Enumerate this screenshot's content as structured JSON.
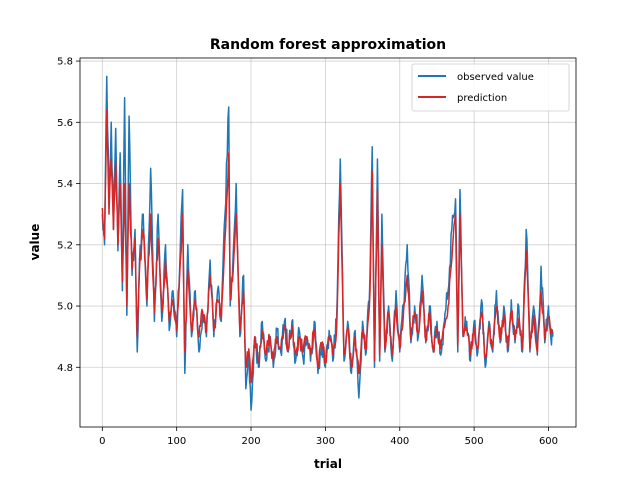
{
  "chart_data": {
    "type": "line",
    "title": "Random forest approximation",
    "xlabel": "trial",
    "ylabel": "value",
    "xlim": [
      -30,
      637
    ],
    "ylim": [
      4.605,
      5.81
    ],
    "xticks": [
      0,
      100,
      200,
      300,
      400,
      500,
      600
    ],
    "yticks": [
      4.8,
      5.0,
      5.2,
      5.4,
      5.6,
      5.8
    ],
    "xtick_labels": [
      "0",
      "100",
      "200",
      "300",
      "400",
      "500",
      "600"
    ],
    "ytick_labels": [
      "4.8",
      "5.0",
      "5.2",
      "5.4",
      "5.6",
      "5.8"
    ],
    "grid": true,
    "legend": "top-right",
    "series": [
      {
        "name": "observed value",
        "color": "#1f77b4",
        "anchors": [
          [
            0,
            5.3
          ],
          [
            3,
            5.2
          ],
          [
            6,
            5.75
          ],
          [
            9,
            5.35
          ],
          [
            12,
            5.6
          ],
          [
            15,
            5.25
          ],
          [
            18,
            5.58
          ],
          [
            21,
            5.18
          ],
          [
            24,
            5.5
          ],
          [
            27,
            5.05
          ],
          [
            30,
            5.68
          ],
          [
            33,
            4.97
          ],
          [
            36,
            5.62
          ],
          [
            40,
            5.1
          ],
          [
            44,
            5.25
          ],
          [
            47,
            4.85
          ],
          [
            50,
            5.15
          ],
          [
            55,
            5.3
          ],
          [
            60,
            5.0
          ],
          [
            65,
            5.45
          ],
          [
            70,
            4.95
          ],
          [
            75,
            5.3
          ],
          [
            80,
            4.95
          ],
          [
            85,
            5.2
          ],
          [
            90,
            4.92
          ],
          [
            95,
            5.05
          ],
          [
            100,
            4.9
          ],
          [
            105,
            5.2
          ],
          [
            108,
            5.38
          ],
          [
            111,
            4.78
          ],
          [
            115,
            5.2
          ],
          [
            120,
            4.9
          ],
          [
            125,
            5.05
          ],
          [
            130,
            4.85
          ],
          [
            135,
            4.98
          ],
          [
            140,
            4.9
          ],
          [
            145,
            5.15
          ],
          [
            150,
            4.9
          ],
          [
            155,
            5.05
          ],
          [
            160,
            4.95
          ],
          [
            165,
            5.3
          ],
          [
            170,
            5.65
          ],
          [
            172,
            5.0
          ],
          [
            175,
            5.1
          ],
          [
            180,
            5.4
          ],
          [
            185,
            4.9
          ],
          [
            190,
            5.1
          ],
          [
            193,
            4.73
          ],
          [
            197,
            4.85
          ],
          [
            200,
            4.66
          ],
          [
            205,
            4.9
          ],
          [
            210,
            4.8
          ],
          [
            215,
            4.95
          ],
          [
            220,
            4.82
          ],
          [
            225,
            4.9
          ],
          [
            230,
            4.8
          ],
          [
            235,
            4.92
          ],
          [
            240,
            4.85
          ],
          [
            245,
            4.95
          ],
          [
            250,
            4.85
          ],
          [
            255,
            4.95
          ],
          [
            260,
            4.82
          ],
          [
            265,
            4.92
          ],
          [
            270,
            4.83
          ],
          [
            275,
            4.9
          ],
          [
            280,
            4.82
          ],
          [
            285,
            4.95
          ],
          [
            290,
            4.78
          ],
          [
            295,
            4.88
          ],
          [
            300,
            4.8
          ],
          [
            305,
            4.92
          ],
          [
            310,
            4.82
          ],
          [
            315,
            4.95
          ],
          [
            320,
            5.48
          ],
          [
            325,
            4.82
          ],
          [
            330,
            4.95
          ],
          [
            335,
            4.78
          ],
          [
            340,
            4.92
          ],
          [
            345,
            4.7
          ],
          [
            350,
            4.95
          ],
          [
            355,
            4.85
          ],
          [
            360,
            5.1
          ],
          [
            363,
            5.52
          ],
          [
            366,
            4.8
          ],
          [
            370,
            5.48
          ],
          [
            373,
            4.82
          ],
          [
            376,
            5.3
          ],
          [
            380,
            4.85
          ],
          [
            385,
            5.0
          ],
          [
            390,
            4.82
          ],
          [
            395,
            5.05
          ],
          [
            400,
            4.85
          ],
          [
            405,
            5.0
          ],
          [
            410,
            5.2
          ],
          [
            415,
            4.88
          ],
          [
            420,
            5.0
          ],
          [
            425,
            4.9
          ],
          [
            430,
            5.1
          ],
          [
            435,
            4.88
          ],
          [
            440,
            5.0
          ],
          [
            445,
            4.85
          ],
          [
            450,
            4.95
          ],
          [
            455,
            4.84
          ],
          [
            460,
            4.95
          ],
          [
            465,
            5.05
          ],
          [
            470,
            5.25
          ],
          [
            475,
            5.35
          ],
          [
            478,
            4.85
          ],
          [
            481,
            5.38
          ],
          [
            485,
            4.9
          ],
          [
            490,
            4.95
          ],
          [
            495,
            4.82
          ],
          [
            500,
            4.95
          ],
          [
            505,
            4.85
          ],
          [
            510,
            5.02
          ],
          [
            515,
            4.8
          ],
          [
            520,
            4.95
          ],
          [
            525,
            4.85
          ],
          [
            530,
            5.05
          ],
          [
            535,
            4.88
          ],
          [
            540,
            5.0
          ],
          [
            545,
            4.85
          ],
          [
            550,
            5.02
          ],
          [
            555,
            4.88
          ],
          [
            560,
            5.0
          ],
          [
            565,
            4.85
          ],
          [
            570,
            5.25
          ],
          [
            572,
            5.12
          ],
          [
            575,
            4.85
          ],
          [
            580,
            5.0
          ],
          [
            585,
            4.84
          ],
          [
            590,
            5.13
          ],
          [
            595,
            4.88
          ],
          [
            600,
            5.0
          ],
          [
            603,
            4.9
          ],
          [
            606,
            4.9
          ]
        ]
      },
      {
        "name": "prediction",
        "color": "#d62728",
        "anchors": [
          [
            0,
            5.32
          ],
          [
            3,
            5.22
          ],
          [
            6,
            5.64
          ],
          [
            9,
            5.3
          ],
          [
            12,
            5.48
          ],
          [
            15,
            5.25
          ],
          [
            18,
            5.47
          ],
          [
            21,
            5.2
          ],
          [
            24,
            5.4
          ],
          [
            27,
            5.08
          ],
          [
            30,
            5.4
          ],
          [
            33,
            5.0
          ],
          [
            36,
            5.4
          ],
          [
            40,
            5.12
          ],
          [
            44,
            5.22
          ],
          [
            47,
            4.9
          ],
          [
            50,
            5.12
          ],
          [
            55,
            5.25
          ],
          [
            60,
            5.02
          ],
          [
            65,
            5.3
          ],
          [
            70,
            4.98
          ],
          [
            75,
            5.22
          ],
          [
            80,
            4.98
          ],
          [
            85,
            5.15
          ],
          [
            90,
            4.95
          ],
          [
            95,
            5.02
          ],
          [
            100,
            4.92
          ],
          [
            105,
            5.15
          ],
          [
            108,
            5.3
          ],
          [
            111,
            4.85
          ],
          [
            115,
            5.12
          ],
          [
            120,
            4.92
          ],
          [
            125,
            5.02
          ],
          [
            130,
            4.9
          ],
          [
            135,
            4.98
          ],
          [
            140,
            4.92
          ],
          [
            145,
            5.1
          ],
          [
            150,
            4.92
          ],
          [
            155,
            5.02
          ],
          [
            160,
            4.96
          ],
          [
            165,
            5.22
          ],
          [
            170,
            5.5
          ],
          [
            172,
            5.02
          ],
          [
            175,
            5.08
          ],
          [
            180,
            5.3
          ],
          [
            185,
            4.92
          ],
          [
            190,
            5.05
          ],
          [
            193,
            4.8
          ],
          [
            197,
            4.86
          ],
          [
            200,
            4.75
          ],
          [
            205,
            4.9
          ],
          [
            210,
            4.82
          ],
          [
            215,
            4.92
          ],
          [
            220,
            4.84
          ],
          [
            225,
            4.9
          ],
          [
            230,
            4.82
          ],
          [
            235,
            4.9
          ],
          [
            240,
            4.86
          ],
          [
            245,
            4.93
          ],
          [
            250,
            4.86
          ],
          [
            255,
            4.93
          ],
          [
            260,
            4.84
          ],
          [
            265,
            4.9
          ],
          [
            270,
            4.85
          ],
          [
            275,
            4.9
          ],
          [
            280,
            4.84
          ],
          [
            285,
            4.92
          ],
          [
            290,
            4.8
          ],
          [
            295,
            4.88
          ],
          [
            300,
            4.82
          ],
          [
            305,
            4.9
          ],
          [
            310,
            4.84
          ],
          [
            315,
            4.92
          ],
          [
            320,
            5.4
          ],
          [
            325,
            4.84
          ],
          [
            330,
            4.93
          ],
          [
            335,
            4.8
          ],
          [
            340,
            4.9
          ],
          [
            345,
            4.78
          ],
          [
            350,
            4.92
          ],
          [
            355,
            4.86
          ],
          [
            360,
            5.05
          ],
          [
            363,
            5.44
          ],
          [
            366,
            4.82
          ],
          [
            370,
            5.38
          ],
          [
            373,
            4.84
          ],
          [
            376,
            5.2
          ],
          [
            380,
            4.86
          ],
          [
            385,
            4.98
          ],
          [
            390,
            4.84
          ],
          [
            395,
            5.0
          ],
          [
            400,
            4.86
          ],
          [
            405,
            4.98
          ],
          [
            410,
            5.1
          ],
          [
            415,
            4.89
          ],
          [
            420,
            4.98
          ],
          [
            425,
            4.91
          ],
          [
            430,
            5.05
          ],
          [
            435,
            4.89
          ],
          [
            440,
            4.98
          ],
          [
            445,
            4.86
          ],
          [
            450,
            4.93
          ],
          [
            455,
            4.86
          ],
          [
            460,
            4.93
          ],
          [
            465,
            5.0
          ],
          [
            470,
            5.15
          ],
          [
            475,
            5.3
          ],
          [
            478,
            4.87
          ],
          [
            481,
            5.3
          ],
          [
            485,
            4.91
          ],
          [
            490,
            4.93
          ],
          [
            495,
            4.84
          ],
          [
            500,
            4.93
          ],
          [
            505,
            4.86
          ],
          [
            510,
            4.98
          ],
          [
            515,
            4.83
          ],
          [
            520,
            4.93
          ],
          [
            525,
            4.86
          ],
          [
            530,
            5.0
          ],
          [
            535,
            4.89
          ],
          [
            540,
            4.97
          ],
          [
            545,
            4.86
          ],
          [
            550,
            4.98
          ],
          [
            555,
            4.89
          ],
          [
            560,
            4.96
          ],
          [
            565,
            4.86
          ],
          [
            570,
            5.18
          ],
          [
            572,
            5.08
          ],
          [
            575,
            4.86
          ],
          [
            580,
            4.97
          ],
          [
            585,
            4.85
          ],
          [
            590,
            5.05
          ],
          [
            595,
            4.89
          ],
          [
            600,
            4.96
          ],
          [
            603,
            4.91
          ],
          [
            606,
            4.91
          ]
        ]
      }
    ]
  }
}
